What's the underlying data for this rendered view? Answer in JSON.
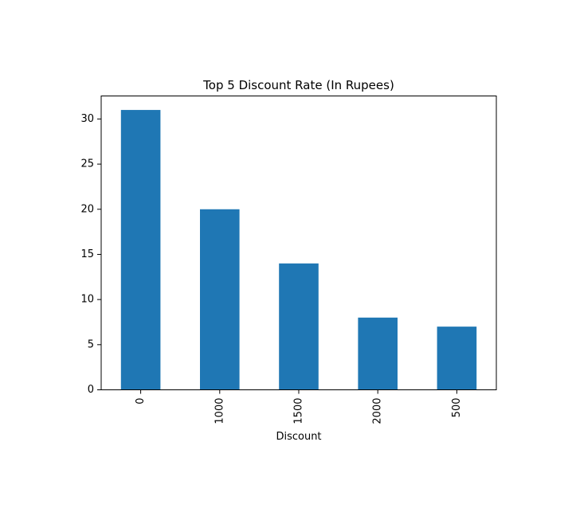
{
  "chart_data": {
    "type": "bar",
    "title": "Top 5 Discount Rate (In Rupees)",
    "xlabel": "Discount",
    "ylabel": "",
    "categories": [
      "0",
      "1000",
      "1500",
      "2000",
      "500"
    ],
    "values": [
      31,
      20,
      14,
      8,
      7
    ],
    "ylim": [
      0,
      32.55
    ],
    "yticks": [
      0,
      5,
      10,
      15,
      20,
      25,
      30
    ],
    "bar_color": "#1f77b4",
    "grid": false,
    "legend": "none",
    "xtick_rotation": "vertical"
  }
}
